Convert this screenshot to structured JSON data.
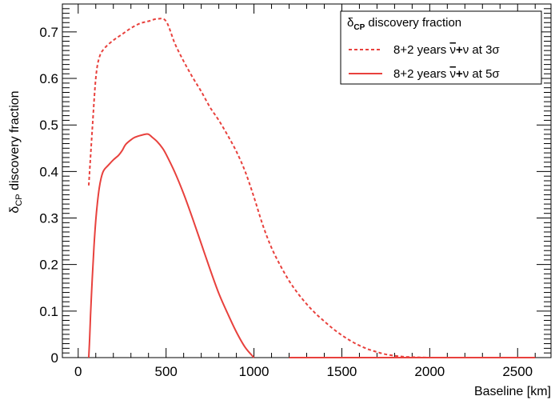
{
  "chart_data": {
    "type": "line",
    "xlabel": "Baseline [km]",
    "ylabel": {
      "delta": "δ",
      "sub": "CP",
      "rest": " discovery fraction"
    },
    "xlim": [
      -90,
      2690
    ],
    "ylim": [
      0,
      0.76
    ],
    "xticks": [
      0,
      500,
      1000,
      1500,
      2000,
      2500
    ],
    "xtick_labels": [
      "0",
      "500",
      "1000",
      "1500",
      "2000",
      "2500"
    ],
    "yticks": [
      0,
      0.1,
      0.2,
      0.3,
      0.4,
      0.5,
      0.6,
      0.7
    ],
    "ytick_labels": [
      "0",
      "0.1",
      "0.2",
      "0.3",
      "0.4",
      "0.5",
      "0.6",
      "0.7"
    ],
    "grid": false,
    "legend": {
      "position": "top-right",
      "title": {
        "delta": "δ",
        "sub": "CP",
        "rest": " discovery fraction"
      },
      "entries": [
        {
          "prefix": "8+2 years ",
          "nubar": "ν",
          "plus": "+",
          "nu": "ν",
          "mid": " at  ",
          "sigma": "3σ"
        },
        {
          "prefix": "8+2 years ",
          "nubar": "ν",
          "plus": "+",
          "nu": "ν",
          "mid": " at  ",
          "sigma": "5σ"
        }
      ]
    },
    "color": "#e8413d",
    "series": [
      {
        "style": "dashed",
        "x": [
          60,
          80,
          100,
          120,
          150,
          200,
          250,
          300,
          350,
          400,
          450,
          500,
          550,
          600,
          650,
          700,
          750,
          800,
          850,
          900,
          950,
          1000,
          1050,
          1100,
          1150,
          1200,
          1250,
          1300,
          1350,
          1400,
          1450,
          1500,
          1550,
          1600,
          1650,
          1700,
          1750,
          1800,
          1850,
          1900,
          1950,
          2000,
          2050,
          2100,
          2200,
          2300,
          2400,
          2500,
          2600
        ],
        "y": [
          0.37,
          0.49,
          0.6,
          0.645,
          0.665,
          0.682,
          0.695,
          0.708,
          0.718,
          0.723,
          0.728,
          0.723,
          0.675,
          0.637,
          0.603,
          0.572,
          0.538,
          0.51,
          0.478,
          0.443,
          0.4,
          0.345,
          0.285,
          0.236,
          0.198,
          0.165,
          0.138,
          0.115,
          0.095,
          0.078,
          0.062,
          0.048,
          0.036,
          0.026,
          0.018,
          0.012,
          0.007,
          0.004,
          0.002,
          0.001,
          0.0005,
          0,
          0,
          0,
          0,
          0,
          0,
          0,
          0
        ]
      },
      {
        "style": "solid",
        "segments": [
          {
            "x": [
              60,
              65,
              70,
              80,
              90,
              100,
              110,
              120,
              130,
              140,
              150,
              170,
              200,
              230,
              250,
              270,
              300,
              320,
              350,
              380,
              400,
              420,
              450,
              480,
              500,
              550,
              600,
              650,
              700,
              750,
              800,
              850,
              900,
              950,
              1000
            ],
            "y": [
              0,
              0.04,
              0.09,
              0.17,
              0.24,
              0.295,
              0.335,
              0.365,
              0.385,
              0.398,
              0.405,
              0.413,
              0.425,
              0.435,
              0.445,
              0.458,
              0.468,
              0.473,
              0.477,
              0.48,
              0.48,
              0.474,
              0.464,
              0.45,
              0.437,
              0.398,
              0.352,
              0.3,
              0.245,
              0.19,
              0.138,
              0.095,
              0.055,
              0.022,
              0
            ]
          },
          {
            "x": [
              1200,
              2600
            ],
            "y": [
              0,
              0
            ]
          }
        ]
      }
    ]
  }
}
